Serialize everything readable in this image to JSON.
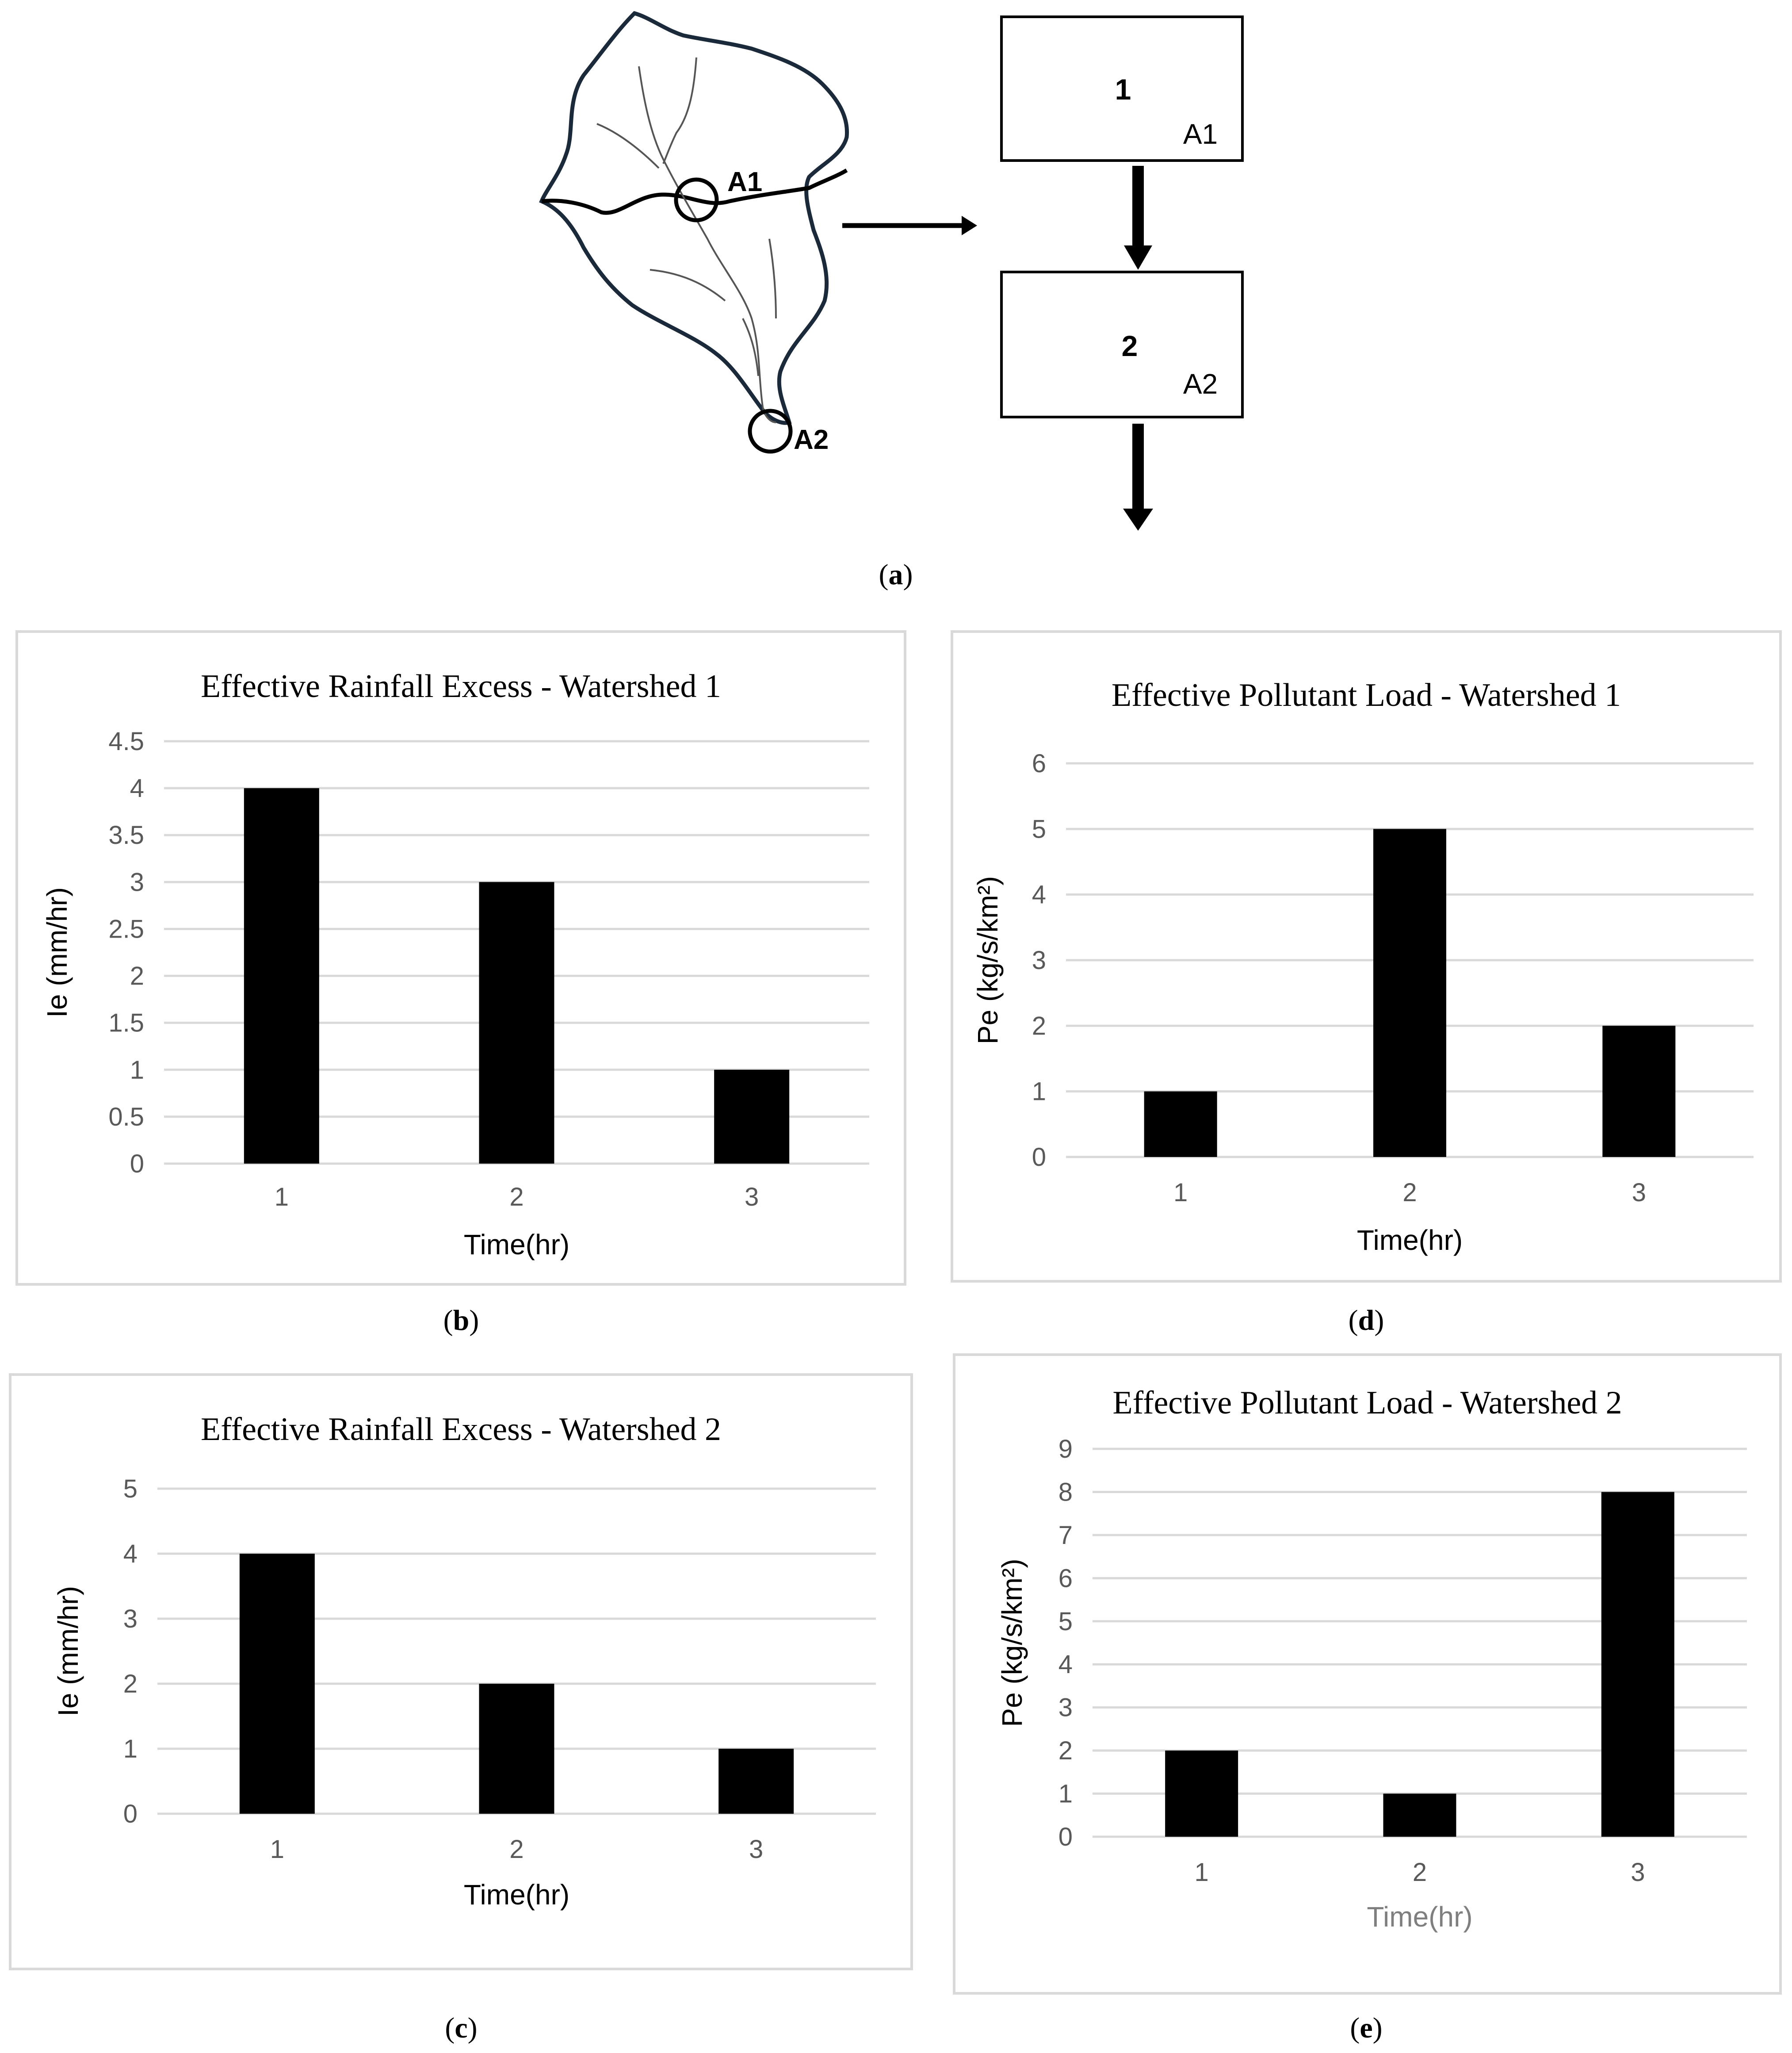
{
  "panel_a": {
    "watershed_labels": [
      "A1",
      "A2"
    ],
    "boxes": [
      {
        "number": "1",
        "area": "A1"
      },
      {
        "number": "2",
        "area": "A2"
      }
    ],
    "caption": "a"
  },
  "chart_data": [
    {
      "id": "b",
      "type": "bar",
      "title": "Effective Rainfall Excess - Watershed 1",
      "xlabel": "Time(hr)",
      "ylabel": "Ie (mm/hr)",
      "categories": [
        "1",
        "2",
        "3"
      ],
      "values": [
        4,
        3,
        1
      ],
      "yticks": [
        "0",
        "0.5",
        "1",
        "1.5",
        "2",
        "2.5",
        "3",
        "3.5",
        "4",
        "4.5"
      ],
      "ylim": [
        0,
        4.5
      ],
      "grid": true,
      "caption": "b"
    },
    {
      "id": "c",
      "type": "bar",
      "title": "Effective Rainfall Excess - Watershed 2",
      "xlabel": "Time(hr)",
      "ylabel": "Ie (mm/hr)",
      "categories": [
        "1",
        "2",
        "3"
      ],
      "values": [
        4,
        2,
        1
      ],
      "yticks": [
        "0",
        "1",
        "2",
        "3",
        "4",
        "5"
      ],
      "ylim": [
        0,
        5
      ],
      "grid": true,
      "caption": "c"
    },
    {
      "id": "d",
      "type": "bar",
      "title": "Effective Pollutant Load - Watershed 1",
      "xlabel": "Time(hr)",
      "ylabel": "Pe (kg/s/km²)",
      "categories": [
        "1",
        "2",
        "3"
      ],
      "values": [
        1,
        5,
        2
      ],
      "yticks": [
        "0",
        "1",
        "2",
        "3",
        "4",
        "5",
        "6"
      ],
      "ylim": [
        0,
        6
      ],
      "grid": true,
      "caption": "d"
    },
    {
      "id": "e",
      "type": "bar",
      "title": "Effective Pollutant Load - Watershed 2",
      "xlabel": "Time(hr)",
      "ylabel": "Pe (kg/s/km²)",
      "categories": [
        "1",
        "2",
        "3"
      ],
      "values": [
        2,
        1,
        8
      ],
      "yticks": [
        "0",
        "1",
        "2",
        "3",
        "4",
        "5",
        "6",
        "7",
        "8",
        "9"
      ],
      "ylim": [
        0,
        9
      ],
      "grid": true,
      "caption": "e"
    }
  ]
}
